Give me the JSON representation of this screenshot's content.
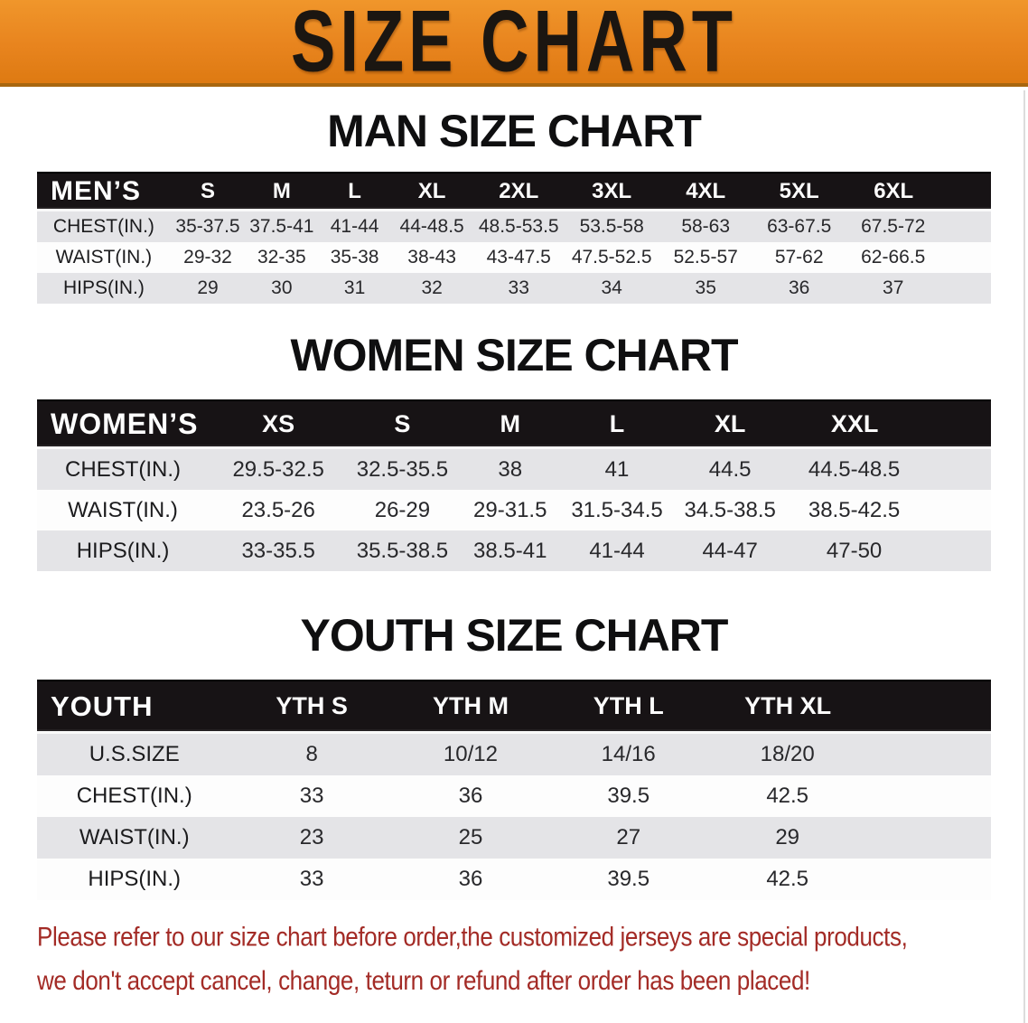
{
  "page": {
    "banner_title": "SIZE CHART",
    "colors": {
      "banner_orange": "#E8841E",
      "header_black": "#171315",
      "row_gray": "#E4E4E7",
      "footnote_red": "#A32B26"
    }
  },
  "sections": [
    {
      "id": "men",
      "title": "MAN SIZE CHART",
      "table": {
        "corner_label": "MEN’S",
        "sizes": [
          "S",
          "M",
          "L",
          "XL",
          "2XL",
          "3XL",
          "4XL",
          "5XL",
          "6XL"
        ],
        "rows": [
          {
            "label": "CHEST(IN.)",
            "values": [
              "35-37.5",
              "37.5-41",
              "41-44",
              "44-48.5",
              "48.5-53.5",
              "53.5-58",
              "58-63",
              "63-67.5",
              "67.5-72"
            ]
          },
          {
            "label": "WAIST(IN.)",
            "values": [
              "29-32",
              "32-35",
              "35-38",
              "38-43",
              "43-47.5",
              "47.5-52.5",
              "52.5-57",
              "57-62",
              "62-66.5"
            ]
          },
          {
            "label": "HIPS(IN.)",
            "values": [
              "29",
              "30",
              "31",
              "32",
              "33",
              "34",
              "35",
              "36",
              "37"
            ]
          }
        ]
      }
    },
    {
      "id": "women",
      "title": "WOMEN SIZE CHART",
      "table": {
        "corner_label": "WOMEN’S",
        "sizes": [
          "XS",
          "S",
          "M",
          "L",
          "XL",
          "XXL"
        ],
        "rows": [
          {
            "label": "CHEST(IN.)",
            "values": [
              "29.5-32.5",
              "32.5-35.5",
              "38",
              "41",
              "44.5",
              "44.5-48.5"
            ]
          },
          {
            "label": "WAIST(IN.)",
            "values": [
              "23.5-26",
              "26-29",
              "29-31.5",
              "31.5-34.5",
              "34.5-38.5",
              "38.5-42.5"
            ]
          },
          {
            "label": "HIPS(IN.)",
            "values": [
              "33-35.5",
              "35.5-38.5",
              "38.5-41",
              "41-44",
              "44-47",
              "47-50"
            ]
          }
        ]
      }
    },
    {
      "id": "youth",
      "title": "YOUTH SIZE CHART",
      "table": {
        "corner_label": "YOUTH",
        "sizes": [
          "YTH S",
          "YTH M",
          "YTH L",
          "YTH XL"
        ],
        "rows": [
          {
            "label": "U.S.SIZE",
            "values": [
              "8",
              "10/12",
              "14/16",
              "18/20"
            ]
          },
          {
            "label": "CHEST(IN.)",
            "values": [
              "33",
              "36",
              "39.5",
              "42.5"
            ]
          },
          {
            "label": "WAIST(IN.)",
            "values": [
              "23",
              "25",
              "27",
              "29"
            ]
          },
          {
            "label": "HIPS(IN.)",
            "values": [
              "33",
              "36",
              "39.5",
              "42.5"
            ]
          }
        ]
      }
    }
  ],
  "footnote": {
    "line1": "Please refer to our size chart before order,the customized jerseys are special products,",
    "line2": "we don't accept cancel, change, teturn or refund after order has been placed!"
  }
}
